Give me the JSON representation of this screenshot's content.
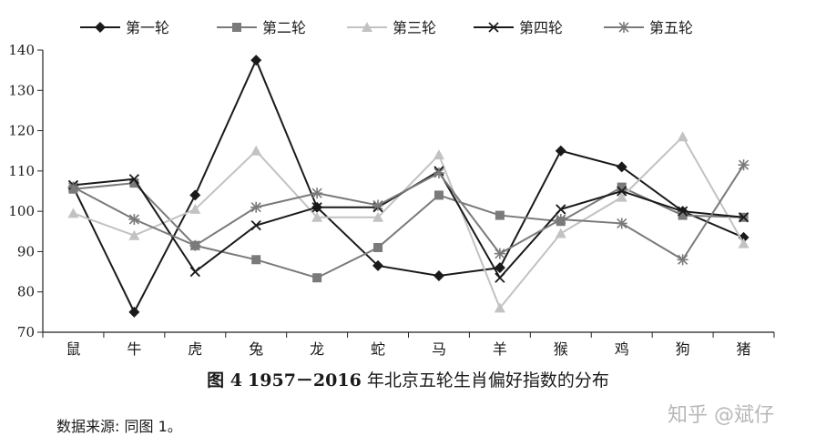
{
  "chart_data": {
    "type": "line",
    "categories": [
      "鼠",
      "牛",
      "虎",
      "兔",
      "龙",
      "蛇",
      "马",
      "羊",
      "猴",
      "鸡",
      "狗",
      "猪"
    ],
    "ylim": [
      70,
      140
    ],
    "yticks": [
      70,
      80,
      90,
      100,
      110,
      120,
      130,
      140
    ],
    "legend_position": "top",
    "grid": false,
    "series": [
      {
        "name": "第一轮",
        "marker": "diamond",
        "color": "#1a1a1a",
        "values": [
          106,
          75,
          104,
          137.5,
          101,
          86.5,
          84,
          86,
          115,
          111,
          100,
          93.5
        ]
      },
      {
        "name": "第二轮",
        "marker": "square",
        "color": "#7a7a7a",
        "values": [
          105.5,
          107,
          91.5,
          88,
          83.5,
          91,
          104,
          99,
          97.5,
          106,
          99,
          98.5
        ]
      },
      {
        "name": "第三轮",
        "marker": "triangle",
        "color": "#c2c2c2",
        "values": [
          99.5,
          94,
          100.5,
          115,
          98.5,
          98.5,
          114,
          76,
          94.5,
          103.5,
          118.5,
          92
        ]
      },
      {
        "name": "第四轮",
        "marker": "x",
        "color": "#1a1a1a",
        "values": [
          106.5,
          108,
          85,
          96.5,
          101,
          101,
          110,
          83.5,
          100.5,
          105,
          100,
          98.5
        ]
      },
      {
        "name": "第五轮",
        "marker": "star",
        "color": "#7a7a7a",
        "values": [
          106,
          98,
          91.5,
          101,
          104.5,
          101.5,
          109.5,
          89.5,
          98,
          97,
          88,
          111.5
        ]
      }
    ]
  },
  "caption": {
    "fig_label": "图 4",
    "years": "1957－2016",
    "title_text": "年北京五轮生肖偏好指数的分布"
  },
  "source_note": "数据来源: 同图 1。",
  "watermark": "知乎 @斌仔"
}
